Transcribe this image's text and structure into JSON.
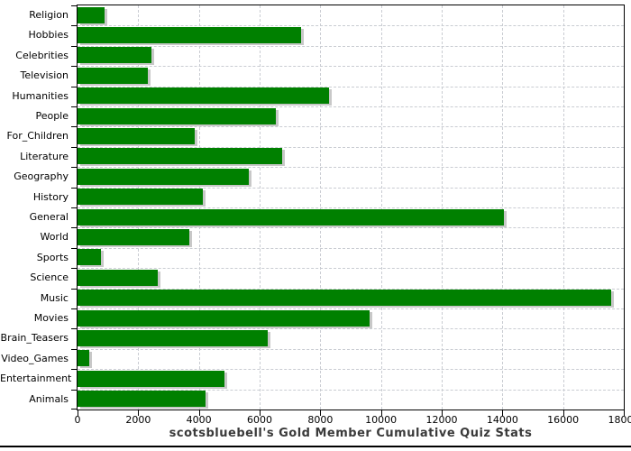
{
  "chart_data": {
    "type": "bar",
    "orientation": "horizontal",
    "title": "scotsbluebell's Gold Member Cumulative Quiz Stats",
    "categories": [
      "Religion",
      "Hobbies",
      "Celebrities",
      "Television",
      "Humanities",
      "People",
      "For_Children",
      "Literature",
      "Geography",
      "History",
      "General",
      "World",
      "Sports",
      "Science",
      "Music",
      "Movies",
      "Brain_Teasers",
      "Video_Games",
      "Entertainment",
      "Animals"
    ],
    "values": [
      890,
      7360,
      2440,
      2330,
      8290,
      6540,
      3860,
      6750,
      5650,
      4140,
      14050,
      3680,
      770,
      2650,
      17590,
      9620,
      6280,
      400,
      4840,
      4220
    ],
    "xlabel": "",
    "ylabel": "",
    "xlim": [
      0,
      18000
    ],
    "x_ticks": [
      0,
      2000,
      4000,
      6000,
      8000,
      10000,
      12000,
      14000,
      16000,
      18000
    ],
    "grid": true,
    "legend": false,
    "colors": {
      "bar": "#008000",
      "bar_shadow": "#c8c8c8",
      "grid": "#c9ccd2",
      "axis": "#000000",
      "title_text": "#3a3a3a",
      "tick_text": "#000000",
      "background": "#ffffff"
    }
  }
}
